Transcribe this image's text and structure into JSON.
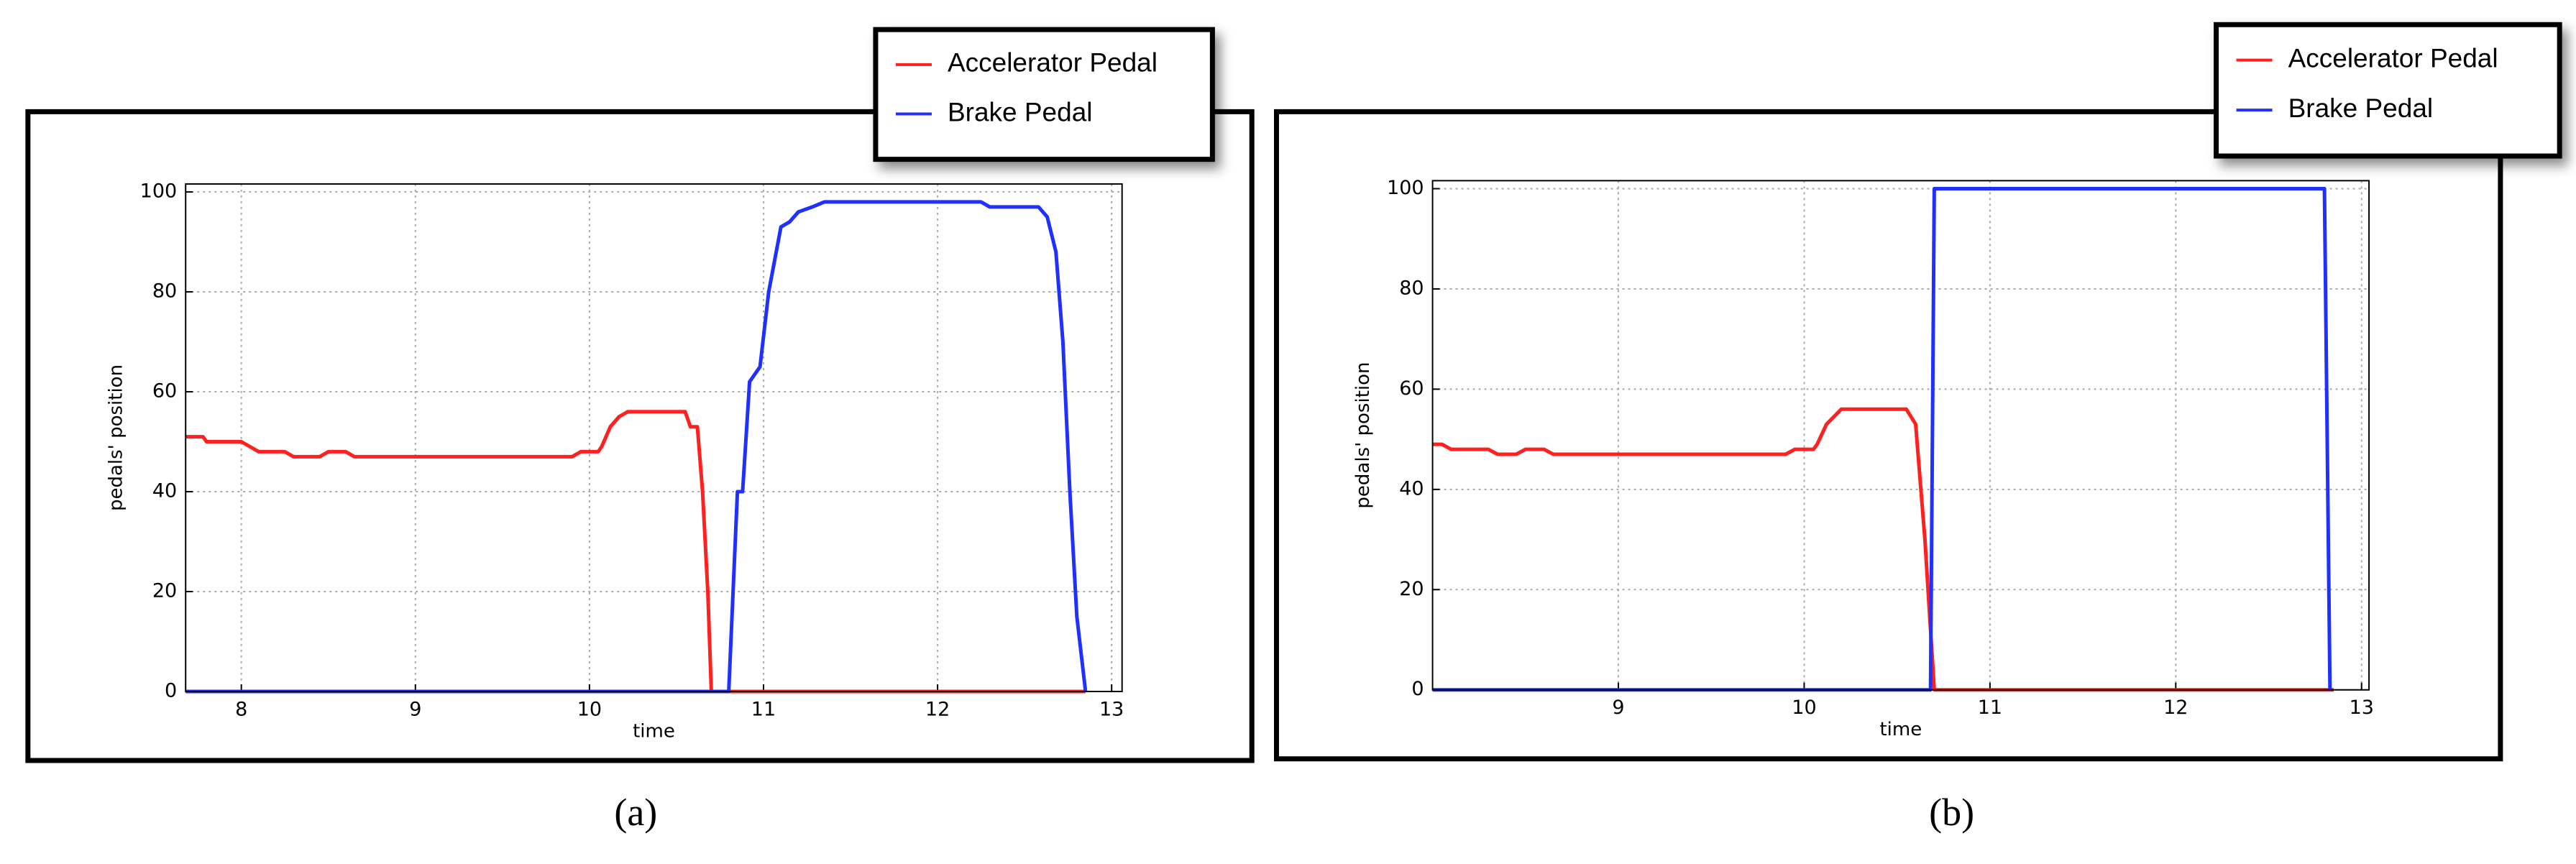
{
  "chart_data": [
    {
      "type": "line",
      "caption": "(a)",
      "xlabel": "time",
      "ylabel": "pedals' position",
      "xlim": [
        7.68,
        13.06
      ],
      "ylim": [
        0,
        101.6
      ],
      "xticks": [
        8,
        9,
        10,
        11,
        12,
        13
      ],
      "yticks": [
        0,
        20,
        40,
        60,
        80,
        100
      ],
      "grid": true,
      "series": [
        {
          "name": "Accelerator Pedal",
          "color": "#ff2020",
          "x": [
            7.68,
            7.78,
            7.8,
            8.0,
            8.05,
            8.1,
            8.25,
            8.3,
            8.45,
            8.5,
            8.6,
            8.65,
            9.9,
            9.95,
            10.05,
            10.07,
            10.12,
            10.17,
            10.22,
            10.55,
            10.58,
            10.62,
            10.65,
            10.68,
            10.7,
            12.85
          ],
          "values": [
            51,
            51,
            50,
            50,
            49,
            48,
            48,
            47,
            47,
            48,
            48,
            47,
            47,
            48,
            48,
            49,
            53,
            55,
            56,
            56,
            53,
            53,
            40,
            20,
            0,
            0
          ]
        },
        {
          "name": "Brake Pedal",
          "color": "#2030ff",
          "x": [
            7.68,
            10.8,
            10.85,
            10.88,
            10.92,
            10.98,
            11.03,
            11.1,
            11.15,
            11.2,
            11.28,
            11.35,
            12.25,
            12.3,
            12.58,
            12.63,
            12.68,
            12.72,
            12.76,
            12.8,
            12.85
          ],
          "values": [
            0,
            0,
            40,
            40,
            62,
            65,
            80,
            93,
            94,
            96,
            97,
            98,
            98,
            97,
            97,
            95,
            88,
            70,
            40,
            15,
            0
          ]
        }
      ]
    },
    {
      "type": "line",
      "caption": "(b)",
      "xlabel": "time",
      "ylabel": "pedals' position",
      "xlim": [
        8,
        13.04
      ],
      "ylim": [
        0,
        101.6
      ],
      "xticks": [
        9,
        10,
        11,
        12,
        13
      ],
      "yticks": [
        0,
        20,
        40,
        60,
        80,
        100
      ],
      "grid": true,
      "series": [
        {
          "name": "Accelerator Pedal",
          "color": "#ff2020",
          "x": [
            8.0,
            8.05,
            8.1,
            8.3,
            8.35,
            8.45,
            8.5,
            8.6,
            8.65,
            9.9,
            9.95,
            10.05,
            10.07,
            10.12,
            10.2,
            10.55,
            10.6,
            10.65,
            10.7,
            12.85
          ],
          "values": [
            49,
            49,
            48,
            48,
            47,
            47,
            48,
            48,
            47,
            47,
            48,
            48,
            49,
            53,
            56,
            56,
            53,
            30,
            0,
            0
          ]
        },
        {
          "name": "Brake Pedal",
          "color": "#2030ff",
          "x": [
            8.0,
            10.68,
            10.7,
            12.8,
            12.83
          ],
          "values": [
            0,
            0,
            100,
            100,
            0
          ]
        }
      ]
    }
  ]
}
